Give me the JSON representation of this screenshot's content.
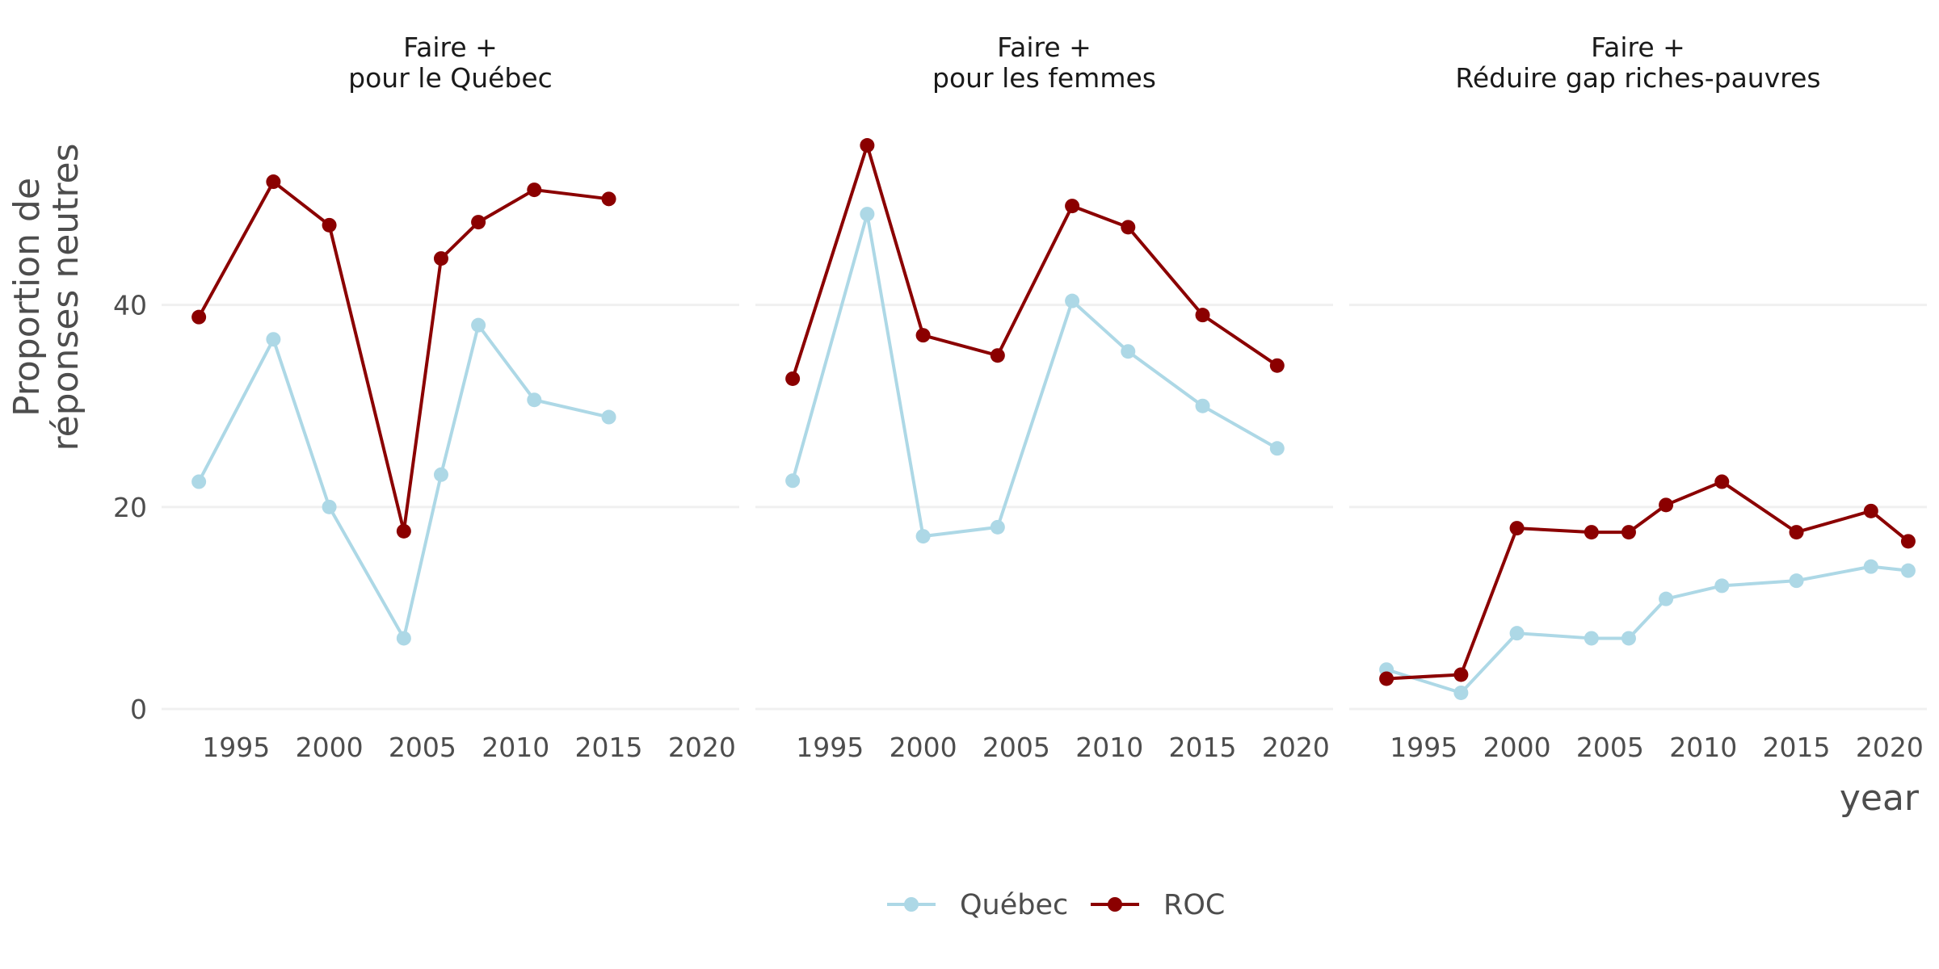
{
  "chart_data": {
    "type": "line",
    "ylabel": "Proportion de\nréponses neutres",
    "xlabel": "year",
    "xlim": [
      1991,
      2022
    ],
    "ylim": [
      0,
      59
    ],
    "x_ticks": [
      1995,
      2000,
      2005,
      2010,
      2015,
      2020
    ],
    "y_ticks": [
      0,
      20,
      40
    ],
    "grid": "horizontal major",
    "legend_position": "bottom",
    "series_styles": [
      {
        "name": "Québec",
        "color": "#add8e6"
      },
      {
        "name": "ROC",
        "color": "#8b0000"
      }
    ],
    "facets": [
      {
        "title": "Faire +\npour le Québec",
        "series": [
          {
            "name": "Québec",
            "x": [
              1993,
              1997,
              2000,
              2004,
              2006,
              2008,
              2011,
              2015
            ],
            "y": [
              22.5,
              36.6,
              20.0,
              7.0,
              23.2,
              38.0,
              30.6,
              28.9
            ]
          },
          {
            "name": "ROC",
            "x": [
              1993,
              1997,
              2000,
              2004,
              2006,
              2008,
              2011,
              2015
            ],
            "y": [
              38.8,
              52.2,
              47.9,
              17.6,
              44.6,
              48.2,
              51.4,
              50.5
            ]
          }
        ]
      },
      {
        "title": "Faire +\npour les femmes",
        "series": [
          {
            "name": "Québec",
            "x": [
              1993,
              1997,
              2000,
              2004,
              2008,
              2011,
              2015,
              2019
            ],
            "y": [
              22.6,
              49.0,
              17.1,
              18.0,
              40.4,
              35.4,
              30.0,
              25.8
            ]
          },
          {
            "name": "ROC",
            "x": [
              1993,
              1997,
              2000,
              2004,
              2008,
              2011,
              2015,
              2019
            ],
            "y": [
              32.7,
              55.8,
              37.0,
              35.0,
              49.8,
              47.7,
              39.0,
              34.0
            ]
          }
        ]
      },
      {
        "title": "Faire +\nRéduire gap riches-pauvres",
        "series": [
          {
            "name": "Québec",
            "x": [
              1993,
              1997,
              2000,
              2004,
              2006,
              2008,
              2011,
              2015,
              2019,
              2021
            ],
            "y": [
              3.9,
              1.6,
              7.5,
              7.0,
              7.0,
              10.9,
              12.2,
              12.7,
              14.1,
              13.7
            ]
          },
          {
            "name": "ROC",
            "x": [
              1993,
              1997,
              2000,
              2004,
              2006,
              2008,
              2011,
              2015,
              2019,
              2021
            ],
            "y": [
              3.0,
              3.4,
              17.9,
              17.5,
              17.5,
              20.2,
              22.5,
              17.5,
              19.6,
              16.6
            ]
          }
        ]
      }
    ]
  }
}
